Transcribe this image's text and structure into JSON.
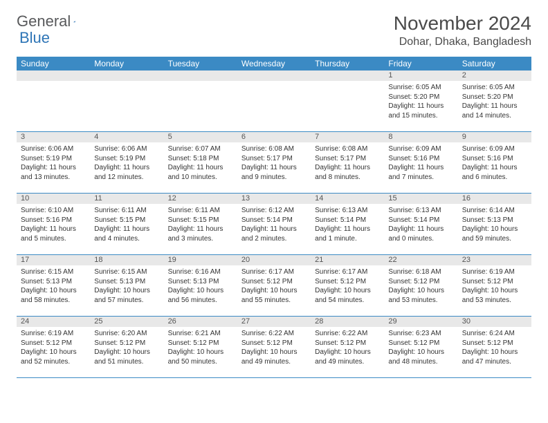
{
  "logo": {
    "line1": "General",
    "line2": "Blue"
  },
  "title": "November 2024",
  "location": "Dohar, Dhaka, Bangladesh",
  "weekday_header_bg": "#3b8ac4",
  "weekday_header_fg": "#ffffff",
  "daynum_bg": "#e8e8e8",
  "border_color": "#3b8ac4",
  "text_color": "#333333",
  "weekdays": [
    "Sunday",
    "Monday",
    "Tuesday",
    "Wednesday",
    "Thursday",
    "Friday",
    "Saturday"
  ],
  "weeks": [
    [
      {
        "num": "",
        "lines": []
      },
      {
        "num": "",
        "lines": []
      },
      {
        "num": "",
        "lines": []
      },
      {
        "num": "",
        "lines": []
      },
      {
        "num": "",
        "lines": []
      },
      {
        "num": "1",
        "lines": [
          "Sunrise: 6:05 AM",
          "Sunset: 5:20 PM",
          "Daylight: 11 hours and 15 minutes."
        ]
      },
      {
        "num": "2",
        "lines": [
          "Sunrise: 6:05 AM",
          "Sunset: 5:20 PM",
          "Daylight: 11 hours and 14 minutes."
        ]
      }
    ],
    [
      {
        "num": "3",
        "lines": [
          "Sunrise: 6:06 AM",
          "Sunset: 5:19 PM",
          "Daylight: 11 hours and 13 minutes."
        ]
      },
      {
        "num": "4",
        "lines": [
          "Sunrise: 6:06 AM",
          "Sunset: 5:19 PM",
          "Daylight: 11 hours and 12 minutes."
        ]
      },
      {
        "num": "5",
        "lines": [
          "Sunrise: 6:07 AM",
          "Sunset: 5:18 PM",
          "Daylight: 11 hours and 10 minutes."
        ]
      },
      {
        "num": "6",
        "lines": [
          "Sunrise: 6:08 AM",
          "Sunset: 5:17 PM",
          "Daylight: 11 hours and 9 minutes."
        ]
      },
      {
        "num": "7",
        "lines": [
          "Sunrise: 6:08 AM",
          "Sunset: 5:17 PM",
          "Daylight: 11 hours and 8 minutes."
        ]
      },
      {
        "num": "8",
        "lines": [
          "Sunrise: 6:09 AM",
          "Sunset: 5:16 PM",
          "Daylight: 11 hours and 7 minutes."
        ]
      },
      {
        "num": "9",
        "lines": [
          "Sunrise: 6:09 AM",
          "Sunset: 5:16 PM",
          "Daylight: 11 hours and 6 minutes."
        ]
      }
    ],
    [
      {
        "num": "10",
        "lines": [
          "Sunrise: 6:10 AM",
          "Sunset: 5:16 PM",
          "Daylight: 11 hours and 5 minutes."
        ]
      },
      {
        "num": "11",
        "lines": [
          "Sunrise: 6:11 AM",
          "Sunset: 5:15 PM",
          "Daylight: 11 hours and 4 minutes."
        ]
      },
      {
        "num": "12",
        "lines": [
          "Sunrise: 6:11 AM",
          "Sunset: 5:15 PM",
          "Daylight: 11 hours and 3 minutes."
        ]
      },
      {
        "num": "13",
        "lines": [
          "Sunrise: 6:12 AM",
          "Sunset: 5:14 PM",
          "Daylight: 11 hours and 2 minutes."
        ]
      },
      {
        "num": "14",
        "lines": [
          "Sunrise: 6:13 AM",
          "Sunset: 5:14 PM",
          "Daylight: 11 hours and 1 minute."
        ]
      },
      {
        "num": "15",
        "lines": [
          "Sunrise: 6:13 AM",
          "Sunset: 5:14 PM",
          "Daylight: 11 hours and 0 minutes."
        ]
      },
      {
        "num": "16",
        "lines": [
          "Sunrise: 6:14 AM",
          "Sunset: 5:13 PM",
          "Daylight: 10 hours and 59 minutes."
        ]
      }
    ],
    [
      {
        "num": "17",
        "lines": [
          "Sunrise: 6:15 AM",
          "Sunset: 5:13 PM",
          "Daylight: 10 hours and 58 minutes."
        ]
      },
      {
        "num": "18",
        "lines": [
          "Sunrise: 6:15 AM",
          "Sunset: 5:13 PM",
          "Daylight: 10 hours and 57 minutes."
        ]
      },
      {
        "num": "19",
        "lines": [
          "Sunrise: 6:16 AM",
          "Sunset: 5:13 PM",
          "Daylight: 10 hours and 56 minutes."
        ]
      },
      {
        "num": "20",
        "lines": [
          "Sunrise: 6:17 AM",
          "Sunset: 5:12 PM",
          "Daylight: 10 hours and 55 minutes."
        ]
      },
      {
        "num": "21",
        "lines": [
          "Sunrise: 6:17 AM",
          "Sunset: 5:12 PM",
          "Daylight: 10 hours and 54 minutes."
        ]
      },
      {
        "num": "22",
        "lines": [
          "Sunrise: 6:18 AM",
          "Sunset: 5:12 PM",
          "Daylight: 10 hours and 53 minutes."
        ]
      },
      {
        "num": "23",
        "lines": [
          "Sunrise: 6:19 AM",
          "Sunset: 5:12 PM",
          "Daylight: 10 hours and 53 minutes."
        ]
      }
    ],
    [
      {
        "num": "24",
        "lines": [
          "Sunrise: 6:19 AM",
          "Sunset: 5:12 PM",
          "Daylight: 10 hours and 52 minutes."
        ]
      },
      {
        "num": "25",
        "lines": [
          "Sunrise: 6:20 AM",
          "Sunset: 5:12 PM",
          "Daylight: 10 hours and 51 minutes."
        ]
      },
      {
        "num": "26",
        "lines": [
          "Sunrise: 6:21 AM",
          "Sunset: 5:12 PM",
          "Daylight: 10 hours and 50 minutes."
        ]
      },
      {
        "num": "27",
        "lines": [
          "Sunrise: 6:22 AM",
          "Sunset: 5:12 PM",
          "Daylight: 10 hours and 49 minutes."
        ]
      },
      {
        "num": "28",
        "lines": [
          "Sunrise: 6:22 AM",
          "Sunset: 5:12 PM",
          "Daylight: 10 hours and 49 minutes."
        ]
      },
      {
        "num": "29",
        "lines": [
          "Sunrise: 6:23 AM",
          "Sunset: 5:12 PM",
          "Daylight: 10 hours and 48 minutes."
        ]
      },
      {
        "num": "30",
        "lines": [
          "Sunrise: 6:24 AM",
          "Sunset: 5:12 PM",
          "Daylight: 10 hours and 47 minutes."
        ]
      }
    ]
  ]
}
